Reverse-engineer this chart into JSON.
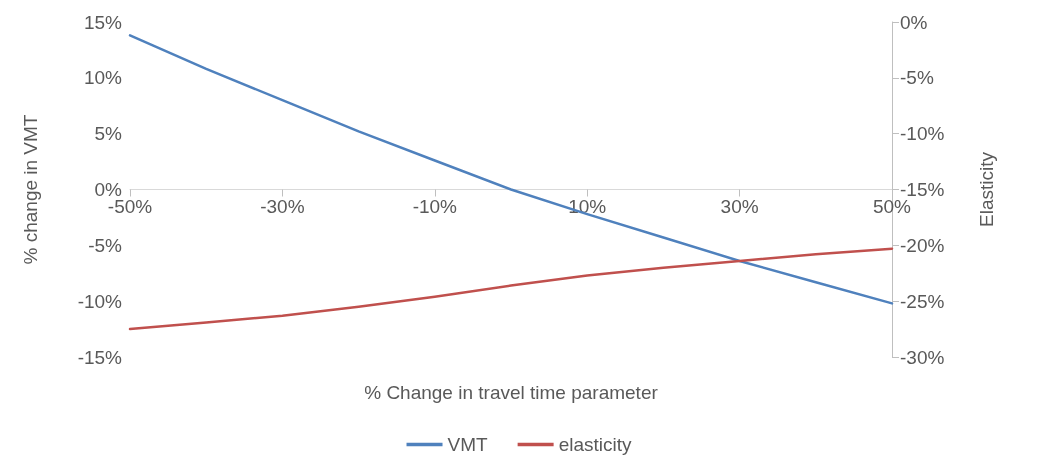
{
  "chart_data": {
    "type": "line",
    "xlabel": "% Change in travel time parameter",
    "ylabel": "% change in VMT",
    "y2label": "Elasticity",
    "x": [
      -50,
      -40,
      -30,
      -20,
      -10,
      0,
      10,
      20,
      30,
      40,
      50
    ],
    "series": [
      {
        "name": "VMT",
        "color": "#4f81bd",
        "values": [
          13.8,
          10.8,
          8.0,
          5.2,
          2.6,
          0,
          -2.2,
          -4.3,
          -6.4,
          -8.3,
          -10.2
        ]
      },
      {
        "name": "elasticity",
        "color": "#c0504d",
        "axis": "y2",
        "values": [
          -27.5,
          -26.9,
          -26.3,
          -25.5,
          -24.6,
          -23.6,
          -22.7,
          -22.0,
          -21.4,
          -20.8,
          -20.3
        ]
      }
    ],
    "xlim": [
      -50,
      50
    ],
    "xticks": [
      {
        "value": -50,
        "label": "-50%"
      },
      {
        "value": -30,
        "label": "-30%"
      },
      {
        "value": -10,
        "label": "-10%"
      },
      {
        "value": 10,
        "label": "10%"
      },
      {
        "value": 30,
        "label": "30%"
      },
      {
        "value": 50,
        "label": "50%"
      }
    ],
    "ylim": [
      -15,
      15
    ],
    "yticks": [
      {
        "value": -15,
        "label": "-15%"
      },
      {
        "value": -10,
        "label": "-10%"
      },
      {
        "value": -5,
        "label": "-5%"
      },
      {
        "value": 0,
        "label": "0%"
      },
      {
        "value": 5,
        "label": "5%"
      },
      {
        "value": 10,
        "label": "10%"
      },
      {
        "value": 15,
        "label": "15%"
      }
    ],
    "y2lim": [
      -30,
      0
    ],
    "y2ticks": [
      {
        "value": -30,
        "label": "-30%"
      },
      {
        "value": -25,
        "label": "-25%"
      },
      {
        "value": -20,
        "label": "-20%"
      },
      {
        "value": -15,
        "label": "-15%"
      },
      {
        "value": -10,
        "label": "-10%"
      },
      {
        "value": -5,
        "label": "-5%"
      },
      {
        "value": 0,
        "label": "0%"
      }
    ],
    "grid": false,
    "legend": "bottom",
    "marker": "none",
    "line_style": "solid"
  }
}
